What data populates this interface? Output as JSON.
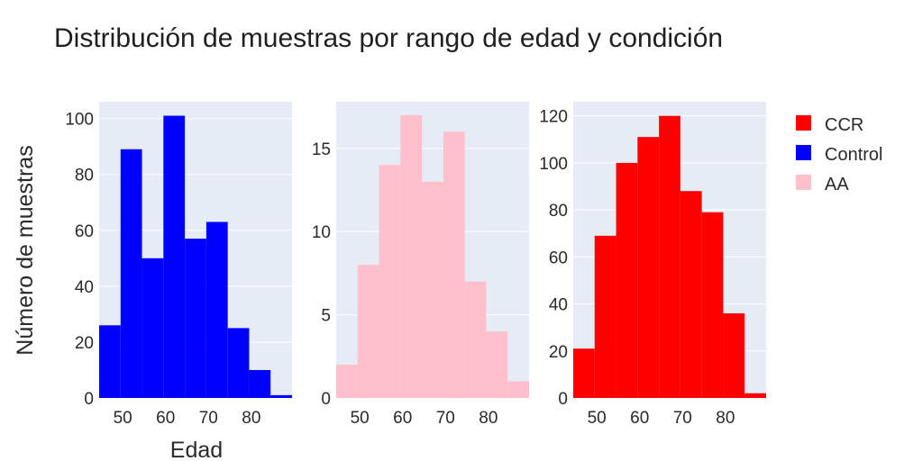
{
  "chart_data": {
    "type": "histogram",
    "title": "Distribución de muestras por rango de edad y condición",
    "xlabel": "Edad",
    "ylabel": "Número de muestras",
    "grid": true,
    "plot_bgcolor": "#e5ecf6",
    "legend_position": "right",
    "legend": [
      {
        "name": "CCR",
        "color": "#ff0000"
      },
      {
        "name": "Control",
        "color": "#0000ff"
      },
      {
        "name": "AA",
        "color": "#ffc0cb"
      }
    ],
    "panels": [
      {
        "series": "Control",
        "color": "#0000ff",
        "xlim": [
          44.5,
          89.5
        ],
        "ylim": [
          0,
          106
        ],
        "yticks": [
          0,
          20,
          40,
          60,
          80,
          100
        ],
        "xticks": [
          50,
          60,
          70,
          80
        ],
        "bin_width": 5,
        "bins": [
          {
            "x0": 44.5,
            "x1": 49.5,
            "count": 26
          },
          {
            "x0": 49.5,
            "x1": 54.5,
            "count": 89
          },
          {
            "x0": 54.5,
            "x1": 59.5,
            "count": 50
          },
          {
            "x0": 59.5,
            "x1": 64.5,
            "count": 101
          },
          {
            "x0": 64.5,
            "x1": 69.5,
            "count": 57
          },
          {
            "x0": 69.5,
            "x1": 74.5,
            "count": 63
          },
          {
            "x0": 74.5,
            "x1": 79.5,
            "count": 25
          },
          {
            "x0": 79.5,
            "x1": 84.5,
            "count": 10
          },
          {
            "x0": 84.5,
            "x1": 89.5,
            "count": 1
          }
        ]
      },
      {
        "series": "AA",
        "color": "#ffc0cb",
        "xlim": [
          44.5,
          89.5
        ],
        "ylim": [
          0,
          17.8
        ],
        "yticks": [
          0,
          5,
          10,
          15
        ],
        "xticks": [
          50,
          60,
          70,
          80
        ],
        "bin_width": 5,
        "bins": [
          {
            "x0": 44.5,
            "x1": 49.5,
            "count": 2
          },
          {
            "x0": 49.5,
            "x1": 54.5,
            "count": 8
          },
          {
            "x0": 54.5,
            "x1": 59.5,
            "count": 14
          },
          {
            "x0": 59.5,
            "x1": 64.5,
            "count": 17
          },
          {
            "x0": 64.5,
            "x1": 69.5,
            "count": 13
          },
          {
            "x0": 69.5,
            "x1": 74.5,
            "count": 16
          },
          {
            "x0": 74.5,
            "x1": 79.5,
            "count": 7
          },
          {
            "x0": 79.5,
            "x1": 84.5,
            "count": 4
          },
          {
            "x0": 84.5,
            "x1": 89.5,
            "count": 1
          }
        ]
      },
      {
        "series": "CCR",
        "color": "#ff0000",
        "xlim": [
          44.5,
          89.5
        ],
        "ylim": [
          0,
          126
        ],
        "yticks": [
          0,
          20,
          40,
          60,
          80,
          100,
          120
        ],
        "xticks": [
          50,
          60,
          70,
          80
        ],
        "bin_width": 5,
        "bins": [
          {
            "x0": 44.5,
            "x1": 49.5,
            "count": 21
          },
          {
            "x0": 49.5,
            "x1": 54.5,
            "count": 69
          },
          {
            "x0": 54.5,
            "x1": 59.5,
            "count": 100
          },
          {
            "x0": 59.5,
            "x1": 64.5,
            "count": 111
          },
          {
            "x0": 64.5,
            "x1": 69.5,
            "count": 120
          },
          {
            "x0": 69.5,
            "x1": 74.5,
            "count": 88
          },
          {
            "x0": 74.5,
            "x1": 79.5,
            "count": 79
          },
          {
            "x0": 79.5,
            "x1": 84.5,
            "count": 36
          },
          {
            "x0": 84.5,
            "x1": 89.5,
            "count": 2
          }
        ]
      }
    ]
  }
}
